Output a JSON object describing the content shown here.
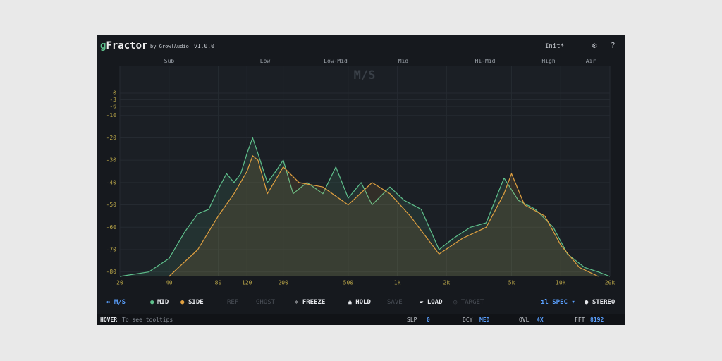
{
  "header": {
    "brand": "gFractor",
    "by": "by GrowlAudio",
    "version": "v1.0.0",
    "preset": "Init*",
    "help": "?"
  },
  "bands": [
    "Sub",
    "Low",
    "Low-Mid",
    "Mid",
    "Hi-Mid",
    "High",
    "Air"
  ],
  "watermark": "M/S",
  "chart_data": {
    "type": "line",
    "log_x": true,
    "grid": true,
    "xlim": [
      20,
      20000
    ],
    "ylim": [
      -82,
      12
    ],
    "xticks": [
      20,
      40,
      80,
      120,
      200,
      500,
      {
        "value": 1000,
        "label": "1k"
      },
      {
        "value": 2000,
        "label": "2k"
      },
      {
        "value": 5000,
        "label": "5k"
      },
      {
        "value": 10000,
        "label": "10k"
      },
      {
        "value": 20000,
        "label": "20k"
      }
    ],
    "yticks": [
      0,
      -3,
      -6,
      -10,
      -20,
      -30,
      -40,
      -50,
      -60,
      -70,
      -80
    ],
    "series": [
      {
        "name": "MID",
        "color": "#5fc08c",
        "x": [
          20,
          30,
          40,
          50,
          60,
          70,
          80,
          90,
          100,
          110,
          120,
          130,
          140,
          160,
          180,
          200,
          230,
          280,
          350,
          420,
          500,
          600,
          700,
          900,
          1100,
          1400,
          1800,
          2200,
          2800,
          3500,
          4500,
          5500,
          7000,
          9000,
          11000,
          14000,
          17000,
          20000
        ],
        "values": [
          -82,
          -80,
          -74,
          -62,
          -54,
          -52,
          -43,
          -36,
          -40,
          -36,
          -27,
          -20,
          -27,
          -40,
          -35,
          -30,
          -45,
          -40,
          -45,
          -33,
          -47,
          -40,
          -50,
          -42,
          -48,
          -52,
          -70,
          -65,
          -60,
          -58,
          -38,
          -48,
          -52,
          -60,
          -72,
          -78,
          -80,
          -82
        ]
      },
      {
        "name": "SIDE",
        "color": "#e0a040",
        "x": [
          40,
          60,
          80,
          100,
          120,
          130,
          140,
          160,
          200,
          250,
          350,
          500,
          700,
          900,
          1200,
          1800,
          2500,
          3500,
          4500,
          5000,
          6000,
          8000,
          10000,
          13000,
          17000
        ],
        "values": [
          -82,
          -70,
          -55,
          -45,
          -35,
          -28,
          -30,
          -45,
          -33,
          -40,
          -42,
          -50,
          -40,
          -45,
          -55,
          -72,
          -65,
          -60,
          -45,
          -36,
          -50,
          -55,
          -68,
          -78,
          -82
        ]
      }
    ]
  },
  "toolbar": {
    "view": "M/S",
    "mid": "MID",
    "side": "SIDE",
    "ref": "REF",
    "ghost": "GHOST",
    "freeze": "FREEZE",
    "hold": "HOLD",
    "save": "SAVE",
    "load": "LOAD",
    "target": "TARGET",
    "spec": "SPEC",
    "stereo": "STEREO"
  },
  "status": {
    "hover": "HOVER",
    "hint": "To see tooltips",
    "slp_label": "SLP",
    "slp": "0",
    "dcy_label": "DCY",
    "dcy": "MED",
    "ovl_label": "OVL",
    "ovl": "4X",
    "fft_label": "FFT",
    "fft": "8192"
  }
}
